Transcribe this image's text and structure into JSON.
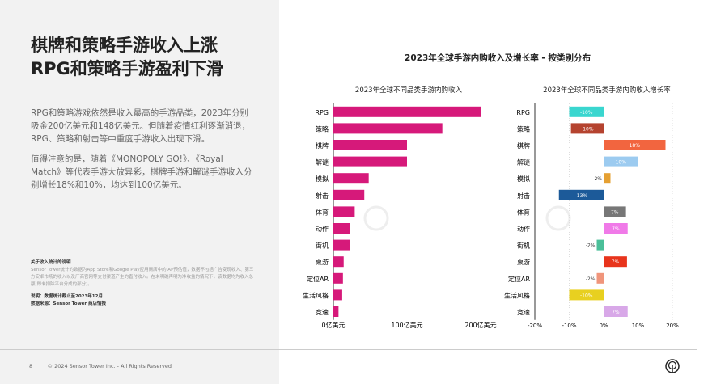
{
  "title_lines": [
    "棋牌和策略手游收入上涨",
    "RPG和策略手游盈利下滑"
  ],
  "paragraphs": [
    "RPG和策略游戏依然是收入最高的手游品类，2023年分别吸金200亿美元和148亿美元。但随着疫情红利逐渐消退，RPG、策略和射击等中重度手游收入出现下滑。",
    "值得注意的是，随着《MONOPOLY GO!》、《Royal Match》等代表手游大放异彩，棋牌手游和解谜手游收入分别增长18%和10%，均达到100亿美元。"
  ],
  "notes": {
    "heading": "关于收入统计的说明",
    "body": "Sensor Tower统计的数据为App Store和Google Play应用商店中的IAP预估值，数据不包括广告变现收入、第三方安卓市场的收入以及厂商官网等支付渠道产生的直付收入。在未明确声明为净收益的情况下，该数据均为收入总额(即未扣除平台分成的部分)。",
    "note": "说明：数据统计截止至2023年12月",
    "source": "数据来源：Sensor Tower 商店情报"
  },
  "footer": {
    "page": "8",
    "copyright": "© 2024 Sensor Tower Inc. - All Rights Reserved"
  },
  "watermark": "SensorTower",
  "chart_title": "2023年全球手游内购收入及增长率 - 按类别分布",
  "chart_data": [
    {
      "type": "bar",
      "orientation": "horizontal",
      "title": "2023年全球不同品类手游内购收入",
      "unit": "亿美元",
      "categories": [
        "RPG",
        "策略",
        "棋牌",
        "解谜",
        "模拟",
        "射击",
        "体育",
        "动作",
        "街机",
        "桌游",
        "定位AR",
        "生活风格",
        "竞速"
      ],
      "values": [
        200,
        148,
        100,
        100,
        48,
        42,
        29,
        23,
        22,
        14,
        13,
        12,
        7
      ],
      "xlim": [
        0,
        200
      ],
      "ticks": [
        0,
        100,
        200
      ],
      "tick_labels": [
        "0亿美元",
        "100亿美元",
        "200亿美元"
      ],
      "color": "#d6197a",
      "grid": false
    },
    {
      "type": "bar",
      "orientation": "horizontal",
      "title": "2023年全球不同品类手游内购收入增长率",
      "categories": [
        "RPG",
        "策略",
        "棋牌",
        "解谜",
        "模拟",
        "射击",
        "体育",
        "动作",
        "街机",
        "桌游",
        "定位AR",
        "生活风格",
        "竞速"
      ],
      "values": [
        -10,
        -9.5,
        18,
        10,
        2,
        -13,
        6.5,
        7,
        -2,
        6.8,
        -2,
        -10,
        7
      ],
      "labels": [
        "-10%",
        "-10%",
        "18%",
        "10%",
        "2%",
        "-13%",
        "7%",
        "7%",
        "-2%",
        "7%",
        "-2%",
        "-10%",
        "7%"
      ],
      "colors": [
        "#3ad6cf",
        "#b5432f",
        "#f2653f",
        "#9ccbf0",
        "#e5a032",
        "#1c5a99",
        "#777777",
        "#f07ae8",
        "#4bbf99",
        "#e8341c",
        "#f0957b",
        "#e8d020",
        "#d8a8e8"
      ],
      "xlim": [
        -20,
        20
      ],
      "ticks": [
        -20,
        -10,
        0,
        10,
        20
      ],
      "tick_labels": [
        "-20%",
        "-10%",
        "0%",
        "10%",
        "20%"
      ],
      "grid": true
    }
  ]
}
